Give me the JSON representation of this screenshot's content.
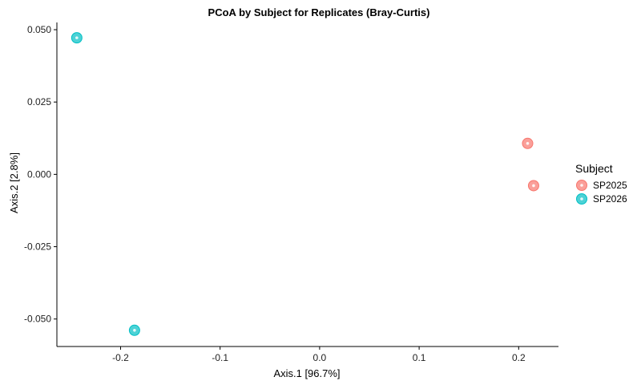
{
  "chart_data": {
    "type": "scatter",
    "title": "PCoA by Subject for Replicates (Bray-Curtis)",
    "xlabel": "Axis.1   [96.7%]",
    "ylabel": "Axis.2   [2.8%]",
    "xlim": [
      -0.264,
      0.24
    ],
    "ylim": [
      -0.0595,
      0.0525
    ],
    "x_ticks": [
      -0.2,
      -0.1,
      0.0,
      0.1,
      0.2
    ],
    "x_tick_labels": [
      "-0.2",
      "-0.1",
      "0.0",
      "0.1",
      "0.2"
    ],
    "y_ticks": [
      0.05,
      0.025,
      0.0,
      -0.025,
      -0.05
    ],
    "y_tick_labels": [
      "0.050",
      "0.025",
      "0.000",
      "-0.025",
      "-0.050"
    ],
    "grid": false,
    "legend": {
      "title": "Subject",
      "placement": "right"
    },
    "series": [
      {
        "name": "SP2025",
        "color": "#F8766D",
        "points": [
          {
            "x": 0.209,
            "y": 0.0107
          },
          {
            "x": 0.215,
            "y": -0.0039
          }
        ]
      },
      {
        "name": "SP2026",
        "color": "#00BFC4",
        "points": [
          {
            "x": -0.244,
            "y": 0.0472
          },
          {
            "x": -0.186,
            "y": -0.0539
          }
        ]
      }
    ]
  }
}
